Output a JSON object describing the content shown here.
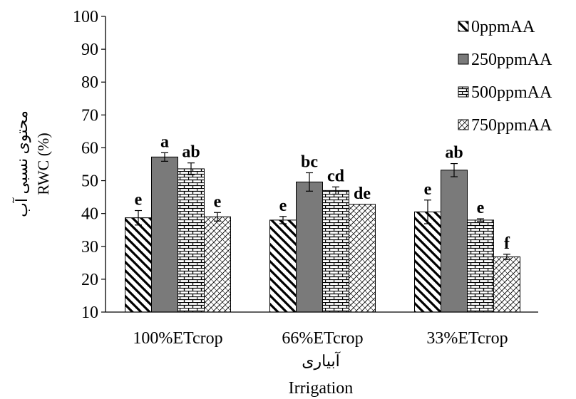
{
  "chart_data": {
    "type": "bar",
    "categories": [
      "100%ETcrop",
      "66%ETcrop",
      "33%ETcrop"
    ],
    "series": [
      {
        "name": "0ppmAA",
        "pattern": "diag-thick",
        "values": [
          38.7,
          38.0,
          40.5
        ],
        "errors": [
          2.2,
          1.1,
          3.6
        ],
        "labels": [
          "e",
          "e",
          "e"
        ]
      },
      {
        "name": "250ppmAA",
        "pattern": "solid-gray",
        "values": [
          57.2,
          49.6,
          53.2
        ],
        "errors": [
          1.3,
          2.8,
          2.0
        ],
        "labels": [
          "a",
          "bc",
          "ab"
        ]
      },
      {
        "name": "500ppmAA",
        "pattern": "brick",
        "values": [
          53.6,
          47.0,
          38.0
        ],
        "errors": [
          1.8,
          1.1,
          0.4
        ],
        "labels": [
          "ab",
          "cd",
          "e"
        ]
      },
      {
        "name": "750ppmAA",
        "pattern": "crosshatch",
        "values": [
          39.0,
          42.8,
          26.8
        ],
        "errors": [
          1.3,
          0.0,
          0.8
        ],
        "labels": [
          "e",
          "de",
          "f"
        ]
      }
    ],
    "yticks": [
      10,
      20,
      30,
      40,
      50,
      60,
      70,
      80,
      90,
      100
    ],
    "ylim": [
      10,
      100
    ],
    "ylabel_fa": "محتوی نسبی آب",
    "ylabel_en": "RWC (%)",
    "xlabel_fa": "آبیاری",
    "xlabel_en": "Irrigation",
    "legend_position": "top-right",
    "grid": false
  }
}
